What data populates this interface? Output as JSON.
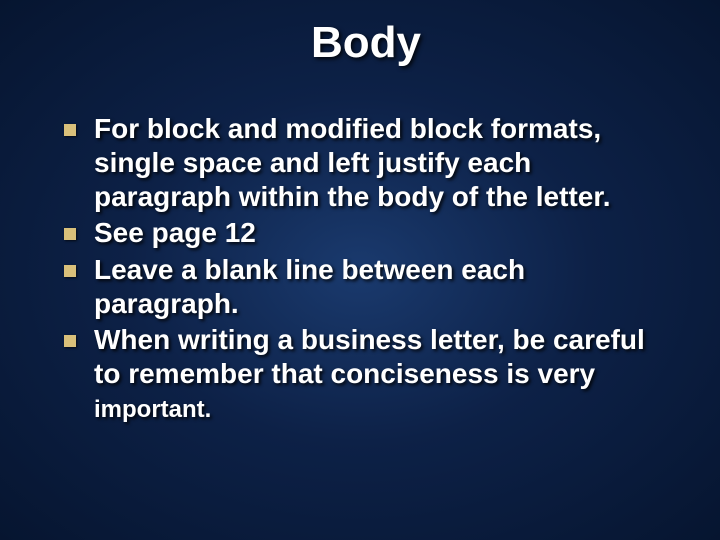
{
  "slide": {
    "title": "Body",
    "bullets": [
      "For block and modified block formats, single space and left justify each paragraph within the body of the letter.",
      " See page 12",
      "Leave a blank line between each paragraph.",
      "When writing a business letter, be careful to remember that conciseness is very"
    ],
    "last_bullet_tail": " important.",
    "styling": {
      "background_gradient": {
        "center": "#1a3a6e",
        "mid": "#0d2147",
        "edge": "#061530"
      },
      "title_color": "#ffffff",
      "title_fontsize": 44,
      "text_color": "#ffffff",
      "text_fontsize": 28,
      "tail_fontsize": 24,
      "bullet_marker_color": "#d9c07a",
      "bullet_marker_size": 12,
      "font_family": "Arial",
      "font_weight": "bold",
      "text_shadow": "2px 2px 3px rgba(0,0,0,0.85)"
    }
  }
}
